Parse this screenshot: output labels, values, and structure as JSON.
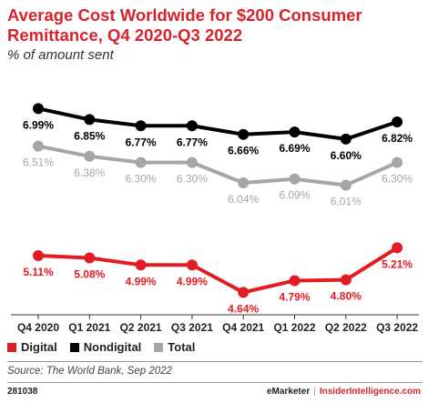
{
  "title": "Average Cost Worldwide for $200 Consumer Remittance, Q4 2020-Q3 2022",
  "subtitle": "% of amount sent",
  "colors": {
    "title": "#d8232a",
    "digital": "#e31b23",
    "nondigital": "#000000",
    "total": "#a6a6a6"
  },
  "chart_data": {
    "type": "line",
    "categories": [
      "Q4 2020",
      "Q1 2021",
      "Q2 2021",
      "Q3 2021",
      "Q4 2021",
      "Q1 2022",
      "Q2 2022",
      "Q3 2022"
    ],
    "series": [
      {
        "name": "Digital",
        "color": "#e31b23",
        "values": [
          5.11,
          5.08,
          4.99,
          4.99,
          4.64,
          4.79,
          4.8,
          5.21
        ],
        "labels": [
          "5.11%",
          "5.08%",
          "4.99%",
          "4.99%",
          "4.64%",
          "4.79%",
          "4.80%",
          "5.21%"
        ]
      },
      {
        "name": "Nondigital",
        "color": "#000000",
        "values": [
          6.99,
          6.85,
          6.77,
          6.77,
          6.66,
          6.69,
          6.6,
          6.82
        ],
        "labels": [
          "6.99%",
          "6.85%",
          "6.77%",
          "6.77%",
          "6.66%",
          "6.69%",
          "6.60%",
          "6.82%"
        ]
      },
      {
        "name": "Total",
        "color": "#a6a6a6",
        "values": [
          6.51,
          6.38,
          6.3,
          6.3,
          6.04,
          6.09,
          6.01,
          6.3
        ],
        "labels": [
          "6.51%",
          "6.38%",
          "6.30%",
          "6.30%",
          "6.04%",
          "6.09%",
          "6.01%",
          "6.30%"
        ]
      }
    ],
    "ylim": [
      4.4,
      7.25
    ],
    "grid": false,
    "legend_position": "bottom-left"
  },
  "legend": [
    {
      "label": "Digital",
      "color": "#e31b23"
    },
    {
      "label": "Nondigital",
      "color": "#000000"
    },
    {
      "label": "Total",
      "color": "#a6a6a6"
    }
  ],
  "source": "Source: The World Bank, Sep 2022",
  "footer": {
    "id": "281038",
    "brand": "eMarketer",
    "separator": "|",
    "site": "InsiderIntelligence.com"
  }
}
